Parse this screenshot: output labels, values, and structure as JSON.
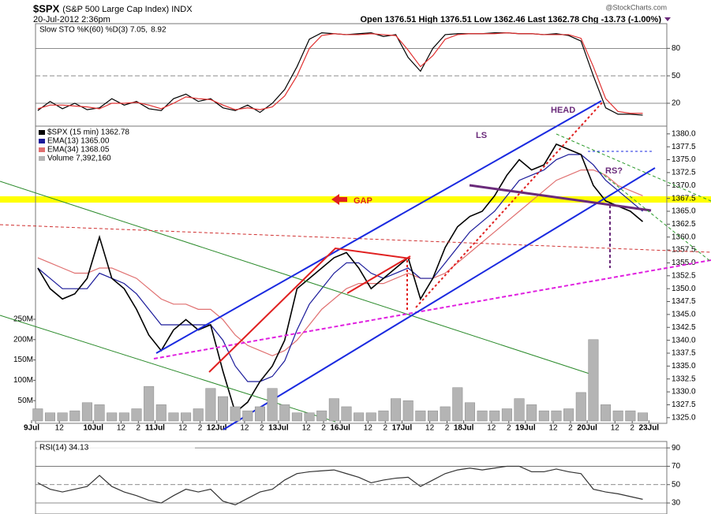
{
  "header": {
    "symbol": "$SPX",
    "name": "(S&P 500 Large Cap Index) INDX",
    "date": "20-Jul-2012 2:36pm",
    "quote": "Open 1376.51 High 1376.51 Low 1362.46 Last 1362.78 Chg -13.73 (-1.00%)",
    "watermark": "@StockCharts.com"
  },
  "chart_data": [
    {
      "type": "line",
      "label": "Slow STO %K(60) %D(3) 7.05,",
      "label_d": "8.92",
      "ylim": [
        -5,
        107
      ],
      "yticks": [
        80,
        50,
        20
      ],
      "grid": true,
      "grid_dash": [
        false,
        true,
        false
      ],
      "series": [
        {
          "color": "#000000",
          "values": [
            12,
            22,
            14,
            20,
            13,
            15,
            25,
            18,
            22,
            14,
            12,
            25,
            30,
            22,
            25,
            15,
            12,
            18,
            10,
            20,
            35,
            60,
            90,
            97,
            96,
            95,
            96,
            97,
            93,
            95,
            70,
            55,
            80,
            95,
            96,
            96,
            96,
            97,
            97,
            96,
            96,
            95,
            96,
            94,
            88,
            50,
            15,
            8,
            8,
            7
          ]
        },
        {
          "color": "#e03030",
          "values": [
            14,
            18,
            18,
            17,
            16,
            14,
            20,
            20,
            21,
            18,
            14,
            20,
            27,
            25,
            24,
            18,
            13,
            15,
            13,
            16,
            28,
            50,
            80,
            94,
            96,
            95,
            95,
            96,
            95,
            94,
            78,
            60,
            72,
            90,
            95,
            96,
            96,
            96,
            97,
            96,
            96,
            95,
            95,
            95,
            91,
            60,
            25,
            11,
            9,
            9
          ]
        }
      ]
    },
    {
      "type": "line",
      "x": [
        0.1,
        0.3,
        0.5,
        0.7,
        0.9,
        1.1,
        1.3,
        1.5,
        1.7,
        1.9,
        2.1,
        2.3,
        2.5,
        2.7,
        2.9,
        3.1,
        3.3,
        3.5,
        3.7,
        3.9,
        4.1,
        4.3,
        4.5,
        4.7,
        4.9,
        5.1,
        5.3,
        5.5,
        5.7,
        5.9,
        6.1,
        6.3,
        6.5,
        6.7,
        6.9,
        7.1,
        7.3,
        7.5,
        7.7,
        7.9,
        8.1,
        8.3,
        8.5,
        8.7,
        8.9,
        9.1,
        9.3,
        9.5,
        9.7,
        9.9
      ],
      "xlim": [
        0,
        10.29
      ],
      "xticks": [
        {
          "value": 0,
          "label": "9Jul"
        },
        {
          "value": 0.45,
          "label": "12"
        },
        {
          "value": 1,
          "label": "10Jul"
        },
        {
          "value": 1.45,
          "label": "12"
        },
        {
          "value": 1.73,
          "label": "2"
        },
        {
          "value": 2,
          "label": "11Jul"
        },
        {
          "value": 2.45,
          "label": "12"
        },
        {
          "value": 2.73,
          "label": "2"
        },
        {
          "value": 3,
          "label": "12Jul"
        },
        {
          "value": 3.45,
          "label": "12"
        },
        {
          "value": 3.73,
          "label": "2"
        },
        {
          "value": 4,
          "label": "13Jul"
        },
        {
          "value": 4.45,
          "label": "12"
        },
        {
          "value": 4.73,
          "label": "2"
        },
        {
          "value": 5,
          "label": "16Jul"
        },
        {
          "value": 5.45,
          "label": "12"
        },
        {
          "value": 5.73,
          "label": "2"
        },
        {
          "value": 6,
          "label": "17Jul"
        },
        {
          "value": 6.45,
          "label": "12"
        },
        {
          "value": 6.73,
          "label": "2"
        },
        {
          "value": 7,
          "label": "18Jul"
        },
        {
          "value": 7.45,
          "label": "12"
        },
        {
          "value": 7.73,
          "label": "2"
        },
        {
          "value": 8,
          "label": "19Jul"
        },
        {
          "value": 8.45,
          "label": "12"
        },
        {
          "value": 8.73,
          "label": "2"
        },
        {
          "value": 9,
          "label": "20Jul"
        },
        {
          "value": 9.45,
          "label": "12"
        },
        {
          "value": 9.73,
          "label": "2"
        },
        {
          "value": 10,
          "label": "23Jul"
        }
      ],
      "ylim": [
        1323.9,
        1381.5
      ],
      "yticks": [
        {
          "value": 1380,
          "label": "1380.0"
        },
        1377.5,
        {
          "value": 1375,
          "label": "1375.0"
        },
        1372.5,
        {
          "value": 1370,
          "label": "1370.0"
        },
        1367.5,
        {
          "value": 1365,
          "label": "1365.0"
        },
        1362.5,
        {
          "value": 1360,
          "label": "1360.0"
        },
        1357.5,
        {
          "value": 1355,
          "label": "1355.0"
        },
        1352.5,
        {
          "value": 1350,
          "label": "1350.0"
        },
        1347.5,
        {
          "value": 1345,
          "label": "1345.0"
        },
        1342.5,
        {
          "value": 1340,
          "label": "1340.0"
        },
        1337.5,
        {
          "value": 1335,
          "label": "1335.0"
        },
        1332.5,
        {
          "value": 1330,
          "label": "1330.0"
        },
        1327.5,
        {
          "value": 1325,
          "label": "1325.0"
        }
      ],
      "y2lim": [
        0,
        250000000
      ],
      "y2ticks": [
        {
          "value": 250000000,
          "label": "250M"
        },
        {
          "value": 200000000,
          "label": "200M"
        },
        {
          "value": 150000000,
          "label": "150M"
        },
        {
          "value": 100000000,
          "label": "100M"
        },
        {
          "value": 50000000,
          "label": "50M"
        }
      ],
      "series": [
        {
          "name": "Volume 7,392,160",
          "color": "#b4b4b4",
          "axis": "y2",
          "values": [
            30000000,
            20000000,
            20000000,
            25000000,
            45000000,
            40000000,
            20000000,
            20000000,
            30000000,
            85000000,
            40000000,
            20000000,
            20000000,
            30000000,
            80000000,
            60000000,
            35000000,
            25000000,
            35000000,
            80000000,
            40000000,
            20000000,
            20000000,
            25000000,
            55000000,
            35000000,
            20000000,
            20000000,
            25000000,
            55000000,
            50000000,
            25000000,
            25000000,
            35000000,
            82000000,
            45000000,
            25000000,
            25000000,
            30000000,
            55000000,
            40000000,
            25000000,
            25000000,
            30000000,
            70000000,
            200000000,
            40000000,
            25000000,
            25000000,
            20000000
          ]
        },
        {
          "name": "EMA(34) 1368.05",
          "color": "#e07070",
          "values": [
            1356,
            1355,
            1354,
            1353,
            1353,
            1354,
            1354,
            1353,
            1352,
            1350,
            1348,
            1347,
            1347,
            1346,
            1346,
            1344,
            1341,
            1339,
            1338,
            1337,
            1338,
            1340,
            1343,
            1346,
            1348,
            1350,
            1351,
            1351,
            1351,
            1352,
            1353,
            1352,
            1352,
            1353,
            1355,
            1357,
            1359,
            1361,
            1363,
            1365,
            1367,
            1369,
            1371,
            1372,
            1373,
            1373,
            1372,
            1370,
            1369,
            1368
          ]
        },
        {
          "name": "EMA(13) 1365.00",
          "color": "#1a1a9a",
          "values": [
            1354,
            1352,
            1350,
            1350,
            1350,
            1353,
            1352,
            1351,
            1349,
            1346,
            1343,
            1343,
            1343,
            1343,
            1343,
            1340,
            1335,
            1332,
            1332,
            1333,
            1336,
            1342,
            1347,
            1350,
            1353,
            1355,
            1355,
            1353,
            1352,
            1353,
            1354,
            1352,
            1352,
            1355,
            1358,
            1361,
            1363,
            1365,
            1368,
            1371,
            1372,
            1373,
            1375,
            1376,
            1376,
            1374,
            1371,
            1369,
            1367,
            1365
          ]
        },
        {
          "name": "$SPX (15 min) 1362.78",
          "color": "#000000",
          "values": [
            1354,
            1350,
            1348,
            1349,
            1352,
            1360,
            1352,
            1350,
            1346,
            1341,
            1338,
            1342,
            1344,
            1342,
            1343,
            1334,
            1326,
            1328,
            1332,
            1335,
            1340,
            1350,
            1352,
            1354,
            1356,
            1357,
            1354,
            1350,
            1352,
            1354,
            1356,
            1348,
            1352,
            1358,
            1362,
            1364,
            1365,
            1368,
            1372,
            1375,
            1373,
            1374,
            1378,
            1377,
            1376,
            1370,
            1367,
            1366,
            1365,
            1363
          ]
        }
      ],
      "annotations": [
        "LS",
        "HEAD",
        "RS?",
        "GAP"
      ]
    },
    {
      "type": "line",
      "label": "RSI(14) 34.13",
      "ylim": [
        18,
        97
      ],
      "yticks": [
        90,
        70,
        50,
        30
      ],
      "grid": true,
      "grid_dash": [
        false,
        false,
        true,
        false
      ],
      "series": [
        {
          "color": "#333333",
          "values": [
            52,
            45,
            42,
            45,
            48,
            60,
            48,
            42,
            38,
            33,
            30,
            38,
            45,
            42,
            45,
            32,
            28,
            35,
            42,
            45,
            55,
            62,
            64,
            65,
            66,
            62,
            58,
            52,
            55,
            57,
            58,
            48,
            55,
            62,
            66,
            68,
            66,
            68,
            70,
            70,
            64,
            64,
            67,
            64,
            62,
            45,
            42,
            40,
            37,
            34
          ]
        }
      ]
    }
  ]
}
